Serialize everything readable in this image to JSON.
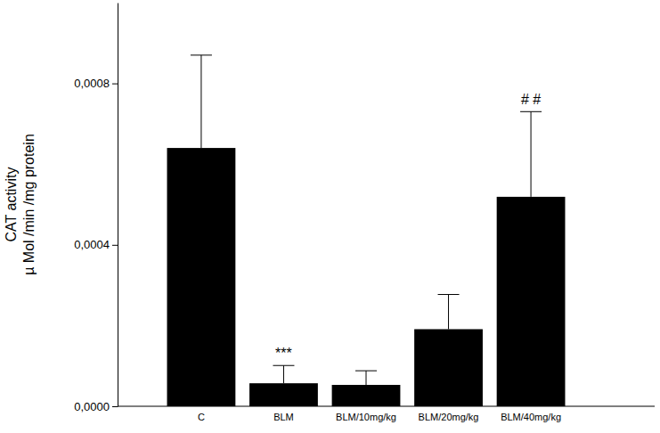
{
  "chart_data": {
    "type": "bar",
    "y_label": [
      "CAT activity",
      "µ Mol /min /mg protein"
    ],
    "categories": [
      "C",
      "BLM",
      "BLM/10mg/kg",
      "BLM/20mg/kg",
      "BLM/40mg/kg"
    ],
    "values": [
      0.00064,
      5.7e-05,
      5.3e-05,
      0.000191,
      0.000519
    ],
    "errors": [
      0.00023,
      4.4e-05,
      3.5e-05,
      8.6e-05,
      0.000211
    ],
    "color": "#000000",
    "ylim": [
      0,
      0.001
    ],
    "yticks": [
      {
        "value": 0,
        "label": "0,0000"
      },
      {
        "value": 0.0004,
        "label": "0,0004"
      },
      {
        "value": 0.0008,
        "label": "0,0008"
      }
    ],
    "annotations": [
      {
        "text": "***",
        "category": "BLM"
      },
      {
        "text": "# #",
        "category": "BLM/40mg/kg"
      }
    ]
  }
}
